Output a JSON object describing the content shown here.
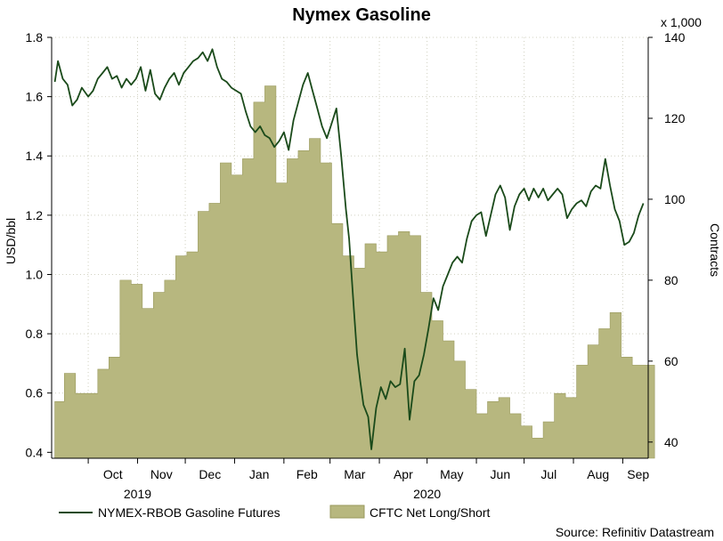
{
  "chart_data": {
    "type": "line",
    "title": "Nymex Gasoline",
    "ylabel": "USD/bbl",
    "y2label": "Contracts",
    "y2_multiplier": "x 1,000",
    "ylim": [
      0.38,
      1.8
    ],
    "y2lim": [
      36,
      140
    ],
    "yticks": [
      "1.8",
      "1.6",
      "1.4",
      "1.2",
      "1.0",
      "0.8",
      "0.6",
      "0.4"
    ],
    "y2ticks": [
      "140",
      "120",
      "100",
      "80",
      "60",
      "40"
    ],
    "months": [
      "Oct",
      "Nov",
      "Dec",
      "Jan",
      "Feb",
      "Mar",
      "Apr",
      "May",
      "Jun",
      "Jul",
      "Aug",
      "Sep"
    ],
    "years": [
      "2019",
      "2020"
    ],
    "grid": true,
    "legend_position": "bottom-left",
    "source": "Source: Refinitiv Datastream",
    "colors": {
      "line": "#1a4a1a",
      "area": "#b7b77f",
      "area_edge": "#9a9a5e",
      "grid": "#d0d0c0"
    },
    "series": [
      {
        "name": "NYMEX-RBOB Gasoline Futures",
        "axis": "left",
        "points": [
          [
            "2019-09-10",
            1.65
          ],
          [
            "2019-09-12",
            1.72
          ],
          [
            "2019-09-15",
            1.66
          ],
          [
            "2019-09-18",
            1.64
          ],
          [
            "2019-09-21",
            1.57
          ],
          [
            "2019-09-24",
            1.59
          ],
          [
            "2019-09-27",
            1.63
          ],
          [
            "2019-10-01",
            1.6
          ],
          [
            "2019-10-04",
            1.62
          ],
          [
            "2019-10-07",
            1.66
          ],
          [
            "2019-10-10",
            1.68
          ],
          [
            "2019-10-13",
            1.7
          ],
          [
            "2019-10-16",
            1.66
          ],
          [
            "2019-10-19",
            1.67
          ],
          [
            "2019-10-22",
            1.63
          ],
          [
            "2019-10-25",
            1.66
          ],
          [
            "2019-10-28",
            1.64
          ],
          [
            "2019-10-31",
            1.66
          ],
          [
            "2019-11-03",
            1.7
          ],
          [
            "2019-11-06",
            1.62
          ],
          [
            "2019-11-09",
            1.69
          ],
          [
            "2019-11-12",
            1.61
          ],
          [
            "2019-11-15",
            1.59
          ],
          [
            "2019-11-18",
            1.63
          ],
          [
            "2019-11-21",
            1.66
          ],
          [
            "2019-11-24",
            1.68
          ],
          [
            "2019-11-27",
            1.64
          ],
          [
            "2019-11-30",
            1.68
          ],
          [
            "2019-12-03",
            1.7
          ],
          [
            "2019-12-06",
            1.72
          ],
          [
            "2019-12-09",
            1.73
          ],
          [
            "2019-12-12",
            1.75
          ],
          [
            "2019-12-15",
            1.72
          ],
          [
            "2019-12-18",
            1.76
          ],
          [
            "2019-12-21",
            1.7
          ],
          [
            "2019-12-24",
            1.66
          ],
          [
            "2019-12-27",
            1.65
          ],
          [
            "2019-12-30",
            1.63
          ],
          [
            "2020-01-02",
            1.62
          ],
          [
            "2020-01-05",
            1.61
          ],
          [
            "2020-01-08",
            1.55
          ],
          [
            "2020-01-11",
            1.5
          ],
          [
            "2020-01-14",
            1.48
          ],
          [
            "2020-01-17",
            1.5
          ],
          [
            "2020-01-20",
            1.47
          ],
          [
            "2020-01-23",
            1.46
          ],
          [
            "2020-01-26",
            1.43
          ],
          [
            "2020-01-29",
            1.45
          ],
          [
            "2020-02-01",
            1.48
          ],
          [
            "2020-02-04",
            1.42
          ],
          [
            "2020-02-07",
            1.52
          ],
          [
            "2020-02-10",
            1.58
          ],
          [
            "2020-02-13",
            1.64
          ],
          [
            "2020-02-16",
            1.68
          ],
          [
            "2020-02-19",
            1.62
          ],
          [
            "2020-02-22",
            1.56
          ],
          [
            "2020-02-25",
            1.5
          ],
          [
            "2020-02-28",
            1.46
          ],
          [
            "2020-03-02",
            1.51
          ],
          [
            "2020-03-05",
            1.56
          ],
          [
            "2020-03-08",
            1.4
          ],
          [
            "2020-03-11",
            1.22
          ],
          [
            "2020-03-13",
            1.12
          ],
          [
            "2020-03-16",
            0.88
          ],
          [
            "2020-03-18",
            0.73
          ],
          [
            "2020-03-20",
            0.64
          ],
          [
            "2020-03-22",
            0.56
          ],
          [
            "2020-03-25",
            0.52
          ],
          [
            "2020-03-27",
            0.41
          ],
          [
            "2020-03-30",
            0.55
          ],
          [
            "2020-04-02",
            0.62
          ],
          [
            "2020-04-05",
            0.58
          ],
          [
            "2020-04-08",
            0.64
          ],
          [
            "2020-04-11",
            0.62
          ],
          [
            "2020-04-14",
            0.63
          ],
          [
            "2020-04-17",
            0.75
          ],
          [
            "2020-04-20",
            0.51
          ],
          [
            "2020-04-23",
            0.64
          ],
          [
            "2020-04-26",
            0.66
          ],
          [
            "2020-04-29",
            0.73
          ],
          [
            "2020-05-02",
            0.82
          ],
          [
            "2020-05-05",
            0.92
          ],
          [
            "2020-05-08",
            0.88
          ],
          [
            "2020-05-11",
            0.96
          ],
          [
            "2020-05-14",
            1.0
          ],
          [
            "2020-05-17",
            1.04
          ],
          [
            "2020-05-20",
            1.06
          ],
          [
            "2020-05-23",
            1.04
          ],
          [
            "2020-05-26",
            1.12
          ],
          [
            "2020-05-29",
            1.18
          ],
          [
            "2020-06-01",
            1.2
          ],
          [
            "2020-06-04",
            1.21
          ],
          [
            "2020-06-07",
            1.13
          ],
          [
            "2020-06-10",
            1.2
          ],
          [
            "2020-06-13",
            1.27
          ],
          [
            "2020-06-16",
            1.3
          ],
          [
            "2020-06-19",
            1.26
          ],
          [
            "2020-06-22",
            1.15
          ],
          [
            "2020-06-25",
            1.23
          ],
          [
            "2020-06-28",
            1.27
          ],
          [
            "2020-07-01",
            1.29
          ],
          [
            "2020-07-04",
            1.25
          ],
          [
            "2020-07-07",
            1.29
          ],
          [
            "2020-07-10",
            1.26
          ],
          [
            "2020-07-13",
            1.29
          ],
          [
            "2020-07-16",
            1.25
          ],
          [
            "2020-07-19",
            1.27
          ],
          [
            "2020-07-22",
            1.29
          ],
          [
            "2020-07-25",
            1.27
          ],
          [
            "2020-07-28",
            1.19
          ],
          [
            "2020-07-31",
            1.22
          ],
          [
            "2020-08-03",
            1.24
          ],
          [
            "2020-08-06",
            1.25
          ],
          [
            "2020-08-09",
            1.23
          ],
          [
            "2020-08-12",
            1.28
          ],
          [
            "2020-08-15",
            1.3
          ],
          [
            "2020-08-18",
            1.29
          ],
          [
            "2020-08-21",
            1.39
          ],
          [
            "2020-08-24",
            1.3
          ],
          [
            "2020-08-27",
            1.22
          ],
          [
            "2020-08-30",
            1.18
          ],
          [
            "2020-09-02",
            1.1
          ],
          [
            "2020-09-05",
            1.11
          ],
          [
            "2020-09-08",
            1.14
          ],
          [
            "2020-09-11",
            1.2
          ],
          [
            "2020-09-14",
            1.24
          ]
        ]
      },
      {
        "name": "CFTC Net Long/Short",
        "axis": "right",
        "type": "area",
        "points": [
          [
            "2019-09-10",
            50
          ],
          [
            "2019-09-16",
            57
          ],
          [
            "2019-09-23",
            52
          ],
          [
            "2019-09-30",
            52
          ],
          [
            "2019-10-07",
            58
          ],
          [
            "2019-10-14",
            61
          ],
          [
            "2019-10-21",
            80
          ],
          [
            "2019-10-28",
            79
          ],
          [
            "2019-11-04",
            73
          ],
          [
            "2019-11-11",
            77
          ],
          [
            "2019-11-18",
            80
          ],
          [
            "2019-11-25",
            86
          ],
          [
            "2019-12-02",
            87
          ],
          [
            "2019-12-09",
            97
          ],
          [
            "2019-12-16",
            99
          ],
          [
            "2019-12-23",
            109
          ],
          [
            "2019-12-30",
            106
          ],
          [
            "2020-01-06",
            110
          ],
          [
            "2020-01-13",
            124
          ],
          [
            "2020-01-20",
            128
          ],
          [
            "2020-01-27",
            104
          ],
          [
            "2020-02-03",
            110
          ],
          [
            "2020-02-10",
            112
          ],
          [
            "2020-02-17",
            115
          ],
          [
            "2020-02-24",
            109
          ],
          [
            "2020-03-02",
            94
          ],
          [
            "2020-03-09",
            86
          ],
          [
            "2020-03-16",
            83
          ],
          [
            "2020-03-23",
            89
          ],
          [
            "2020-03-30",
            87
          ],
          [
            "2020-04-06",
            91
          ],
          [
            "2020-04-13",
            92
          ],
          [
            "2020-04-20",
            91
          ],
          [
            "2020-04-27",
            77
          ],
          [
            "2020-05-04",
            70
          ],
          [
            "2020-05-11",
            65
          ],
          [
            "2020-05-18",
            60
          ],
          [
            "2020-05-25",
            53
          ],
          [
            "2020-06-01",
            47
          ],
          [
            "2020-06-08",
            50
          ],
          [
            "2020-06-15",
            51
          ],
          [
            "2020-06-22",
            47
          ],
          [
            "2020-06-29",
            44
          ],
          [
            "2020-07-06",
            41
          ],
          [
            "2020-07-13",
            45
          ],
          [
            "2020-07-20",
            52
          ],
          [
            "2020-07-27",
            51
          ],
          [
            "2020-08-03",
            59
          ],
          [
            "2020-08-10",
            64
          ],
          [
            "2020-08-17",
            68
          ],
          [
            "2020-08-24",
            72
          ],
          [
            "2020-08-31",
            61
          ],
          [
            "2020-09-07",
            59
          ],
          [
            "2020-09-14",
            59
          ]
        ]
      }
    ]
  }
}
